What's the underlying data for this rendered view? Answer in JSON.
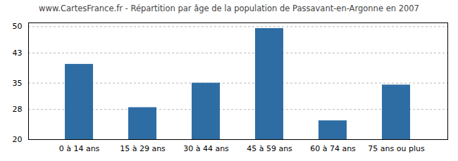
{
  "chart_data": {
    "type": "bar",
    "title": "www.CartesFrance.fr - Répartition par âge de la population de Passavant-en-Argonne en 2007",
    "categories": [
      "0 à 14 ans",
      "15 à 29 ans",
      "30 à 44 ans",
      "45 à 59 ans",
      "60 à 74 ans",
      "75 ans ou plus"
    ],
    "values": [
      40,
      28.5,
      35,
      49.5,
      25,
      34.5
    ],
    "color": "#2e6da4",
    "ylim": [
      20,
      51
    ],
    "yticks": [
      20,
      28,
      35,
      43,
      50
    ],
    "grid": true
  }
}
